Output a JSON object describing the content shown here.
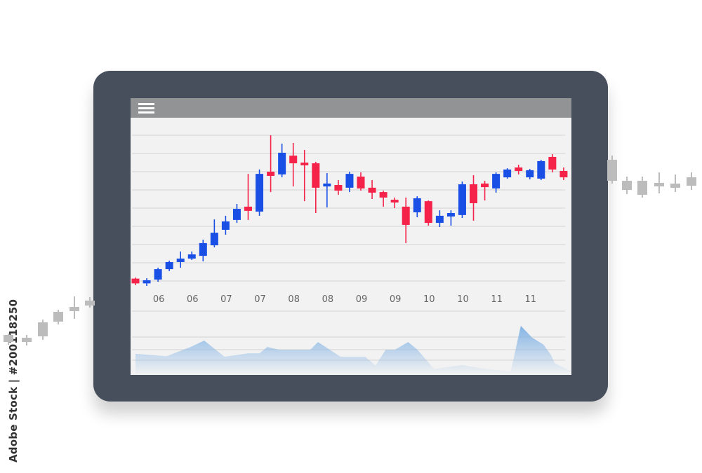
{
  "watermark_side": "Adobe Stock | #200118250",
  "colors": {
    "up": "#1a4fe6",
    "down": "#f5234a",
    "volume": "#7fb1e4",
    "tablet": "#474e5c",
    "topbar": "#929395",
    "screen": "#f2f2f2",
    "decor": "#bcbcbc"
  },
  "topbar": {
    "menu_icon": "hamburger-menu-icon"
  },
  "chart_data": {
    "type": "candlestick",
    "title": "",
    "xlabel": "",
    "ylabel": "",
    "grid": true,
    "ylim": [
      10,
      90
    ],
    "x_tick_labels": [
      {
        "candle": 3,
        "label": "06"
      },
      {
        "candle": 6,
        "label": "06"
      },
      {
        "candle": 9,
        "label": "07"
      },
      {
        "candle": 12,
        "label": "07"
      },
      {
        "candle": 15,
        "label": "08"
      },
      {
        "candle": 18,
        "label": "08"
      },
      {
        "candle": 21,
        "label": "09"
      },
      {
        "candle": 24,
        "label": "09"
      },
      {
        "candle": 27,
        "label": "10"
      },
      {
        "candle": 30,
        "label": "10"
      },
      {
        "candle": 33,
        "label": "11"
      },
      {
        "candle": 36,
        "label": "11"
      }
    ],
    "candles": [
      {
        "o": 11.3,
        "h": 11.9,
        "l": 7.7,
        "c": 8.7
      },
      {
        "o": 8.7,
        "h": 11.5,
        "l": 7.3,
        "c": 10.4
      },
      {
        "o": 10.8,
        "h": 17.3,
        "l": 9.6,
        "c": 16.5
      },
      {
        "o": 16.5,
        "h": 21.2,
        "l": 15.4,
        "c": 20.4
      },
      {
        "o": 20.4,
        "h": 26.2,
        "l": 17.3,
        "c": 22.3
      },
      {
        "o": 22.3,
        "h": 26.2,
        "l": 21.5,
        "c": 24.6
      },
      {
        "o": 23.8,
        "h": 32.7,
        "l": 20.8,
        "c": 30.8
      },
      {
        "o": 29.6,
        "h": 43.8,
        "l": 28.5,
        "c": 36.5
      },
      {
        "o": 38.1,
        "h": 45.8,
        "l": 35.4,
        "c": 42.7
      },
      {
        "o": 43.5,
        "h": 52.3,
        "l": 41.9,
        "c": 49.6
      },
      {
        "o": 50.8,
        "h": 68.8,
        "l": 43.5,
        "c": 48.5
      },
      {
        "o": 48.1,
        "h": 71.2,
        "l": 45.8,
        "c": 68.8
      },
      {
        "o": 70.0,
        "h": 90.0,
        "l": 58.8,
        "c": 67.7
      },
      {
        "o": 68.5,
        "h": 85.4,
        "l": 66.9,
        "c": 80.4
      },
      {
        "o": 78.8,
        "h": 85.8,
        "l": 61.9,
        "c": 74.6
      },
      {
        "o": 75.0,
        "h": 81.9,
        "l": 53.8,
        "c": 73.5
      },
      {
        "o": 74.6,
        "h": 75.4,
        "l": 47.3,
        "c": 61.2
      },
      {
        "o": 61.9,
        "h": 69.2,
        "l": 50.4,
        "c": 63.5
      },
      {
        "o": 62.7,
        "h": 65.4,
        "l": 57.3,
        "c": 59.6
      },
      {
        "o": 61.2,
        "h": 70.0,
        "l": 58.8,
        "c": 68.8
      },
      {
        "o": 67.3,
        "h": 69.6,
        "l": 59.6,
        "c": 60.8
      },
      {
        "o": 61.2,
        "h": 65.4,
        "l": 55.0,
        "c": 58.5
      },
      {
        "o": 58.8,
        "h": 59.6,
        "l": 50.8,
        "c": 55.8
      },
      {
        "o": 54.6,
        "h": 55.8,
        "l": 50.0,
        "c": 53.1
      },
      {
        "o": 50.8,
        "h": 55.8,
        "l": 30.8,
        "c": 40.8
      },
      {
        "o": 47.7,
        "h": 56.5,
        "l": 45.0,
        "c": 55.4
      },
      {
        "o": 53.8,
        "h": 54.2,
        "l": 40.4,
        "c": 41.9
      },
      {
        "o": 41.9,
        "h": 48.8,
        "l": 39.6,
        "c": 45.8
      },
      {
        "o": 45.4,
        "h": 48.8,
        "l": 40.4,
        "c": 47.3
      },
      {
        "o": 46.2,
        "h": 64.6,
        "l": 44.6,
        "c": 63.1
      },
      {
        "o": 63.1,
        "h": 68.1,
        "l": 43.1,
        "c": 52.7
      },
      {
        "o": 63.5,
        "h": 65.0,
        "l": 54.2,
        "c": 61.5
      },
      {
        "o": 60.8,
        "h": 69.6,
        "l": 58.5,
        "c": 68.8
      },
      {
        "o": 66.9,
        "h": 71.9,
        "l": 66.2,
        "c": 71.2
      },
      {
        "o": 72.3,
        "h": 73.8,
        "l": 68.5,
        "c": 70.4
      },
      {
        "o": 66.9,
        "h": 71.5,
        "l": 65.8,
        "c": 70.8
      },
      {
        "o": 66.2,
        "h": 76.5,
        "l": 65.4,
        "c": 75.8
      },
      {
        "o": 78.1,
        "h": 79.6,
        "l": 69.6,
        "c": 71.2
      },
      {
        "o": 70.4,
        "h": 72.3,
        "l": 65.4,
        "c": 66.9
      }
    ],
    "volume": {
      "type": "area",
      "ylim": [
        0,
        100
      ],
      "points": [
        [
          1.0,
          43
        ],
        [
          3.75,
          38
        ],
        [
          5.9,
          57
        ],
        [
          7.1,
          70
        ],
        [
          8.9,
          37
        ],
        [
          11.0,
          44
        ],
        [
          12.0,
          44
        ],
        [
          12.7,
          57
        ],
        [
          13.8,
          51
        ],
        [
          16.5,
          51
        ],
        [
          17.2,
          67
        ],
        [
          19.2,
          37
        ],
        [
          21.4,
          37
        ],
        [
          22.3,
          19
        ],
        [
          23.2,
          51
        ],
        [
          24.0,
          51
        ],
        [
          25.2,
          67
        ],
        [
          26.0,
          52
        ],
        [
          27.5,
          12
        ],
        [
          30.0,
          20
        ],
        [
          31.8,
          13
        ],
        [
          34.3,
          7
        ],
        [
          35.2,
          100
        ],
        [
          36.2,
          76
        ],
        [
          37.2,
          62
        ],
        [
          37.9,
          40
        ],
        [
          38.2,
          24
        ],
        [
          39.7,
          7
        ]
      ]
    }
  }
}
